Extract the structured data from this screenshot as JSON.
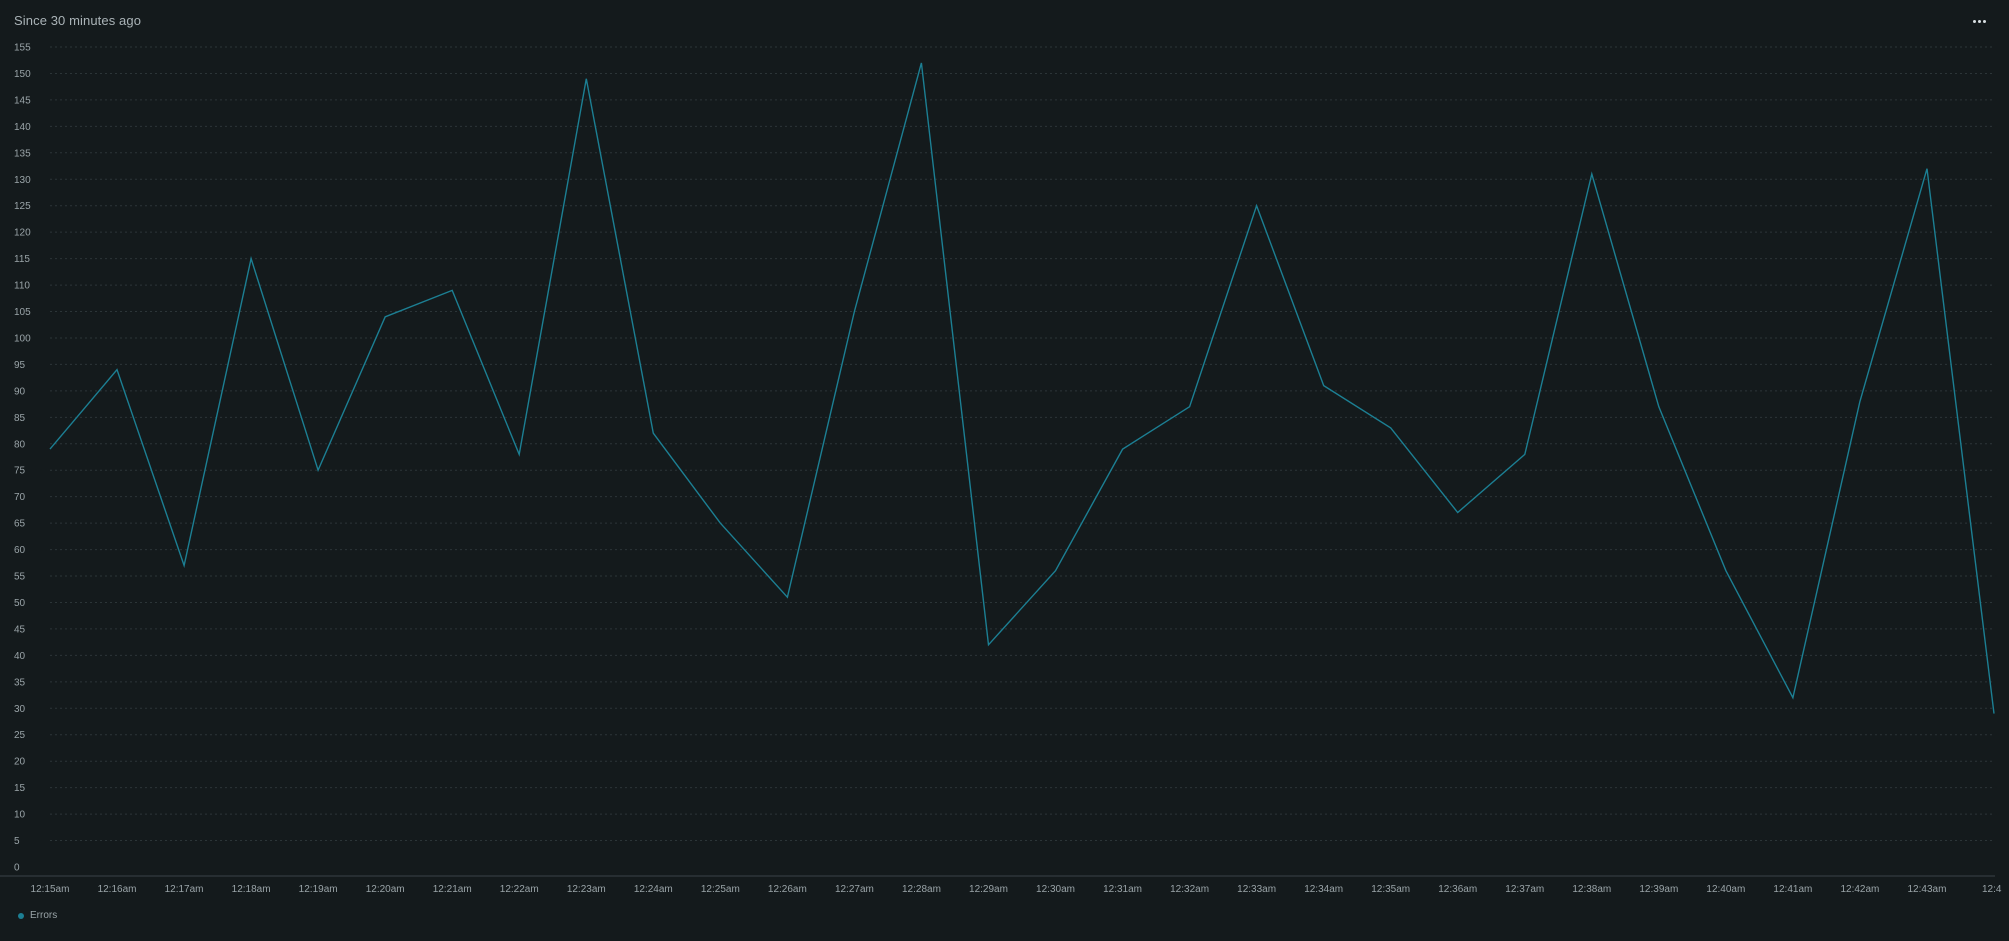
{
  "header": {
    "title": "Since 30 minutes ago",
    "menu_icon": "more-horizontal-icon"
  },
  "chart_data": {
    "type": "line",
    "grid": true,
    "ylim": [
      0,
      155
    ],
    "y_ticks": [
      0,
      5,
      10,
      15,
      20,
      25,
      30,
      35,
      40,
      45,
      50,
      55,
      60,
      65,
      70,
      75,
      80,
      85,
      90,
      95,
      100,
      105,
      110,
      115,
      120,
      125,
      130,
      135,
      140,
      145,
      150,
      155
    ],
    "x_tick_labels": [
      "12:15am",
      "12:16am",
      "12:17am",
      "12:18am",
      "12:19am",
      "12:20am",
      "12:21am",
      "12:22am",
      "12:23am",
      "12:24am",
      "12:25am",
      "12:26am",
      "12:27am",
      "12:28am",
      "12:29am",
      "12:30am",
      "12:31am",
      "12:32am",
      "12:33am",
      "12:34am",
      "12:35am",
      "12:36am",
      "12:37am",
      "12:38am",
      "12:39am",
      "12:40am",
      "12:41am",
      "12:42am",
      "12:43am",
      "12:4"
    ],
    "legend_position": "bottom-left",
    "series": [
      {
        "name": "Errors",
        "color": "#1c7f93",
        "values": [
          79,
          94,
          57,
          115,
          75,
          104,
          109,
          78,
          149,
          82,
          65,
          51,
          105,
          152,
          42,
          56,
          79,
          87,
          125,
          91,
          83,
          67,
          78,
          131,
          87,
          56,
          32,
          88,
          132,
          29
        ]
      }
    ]
  }
}
